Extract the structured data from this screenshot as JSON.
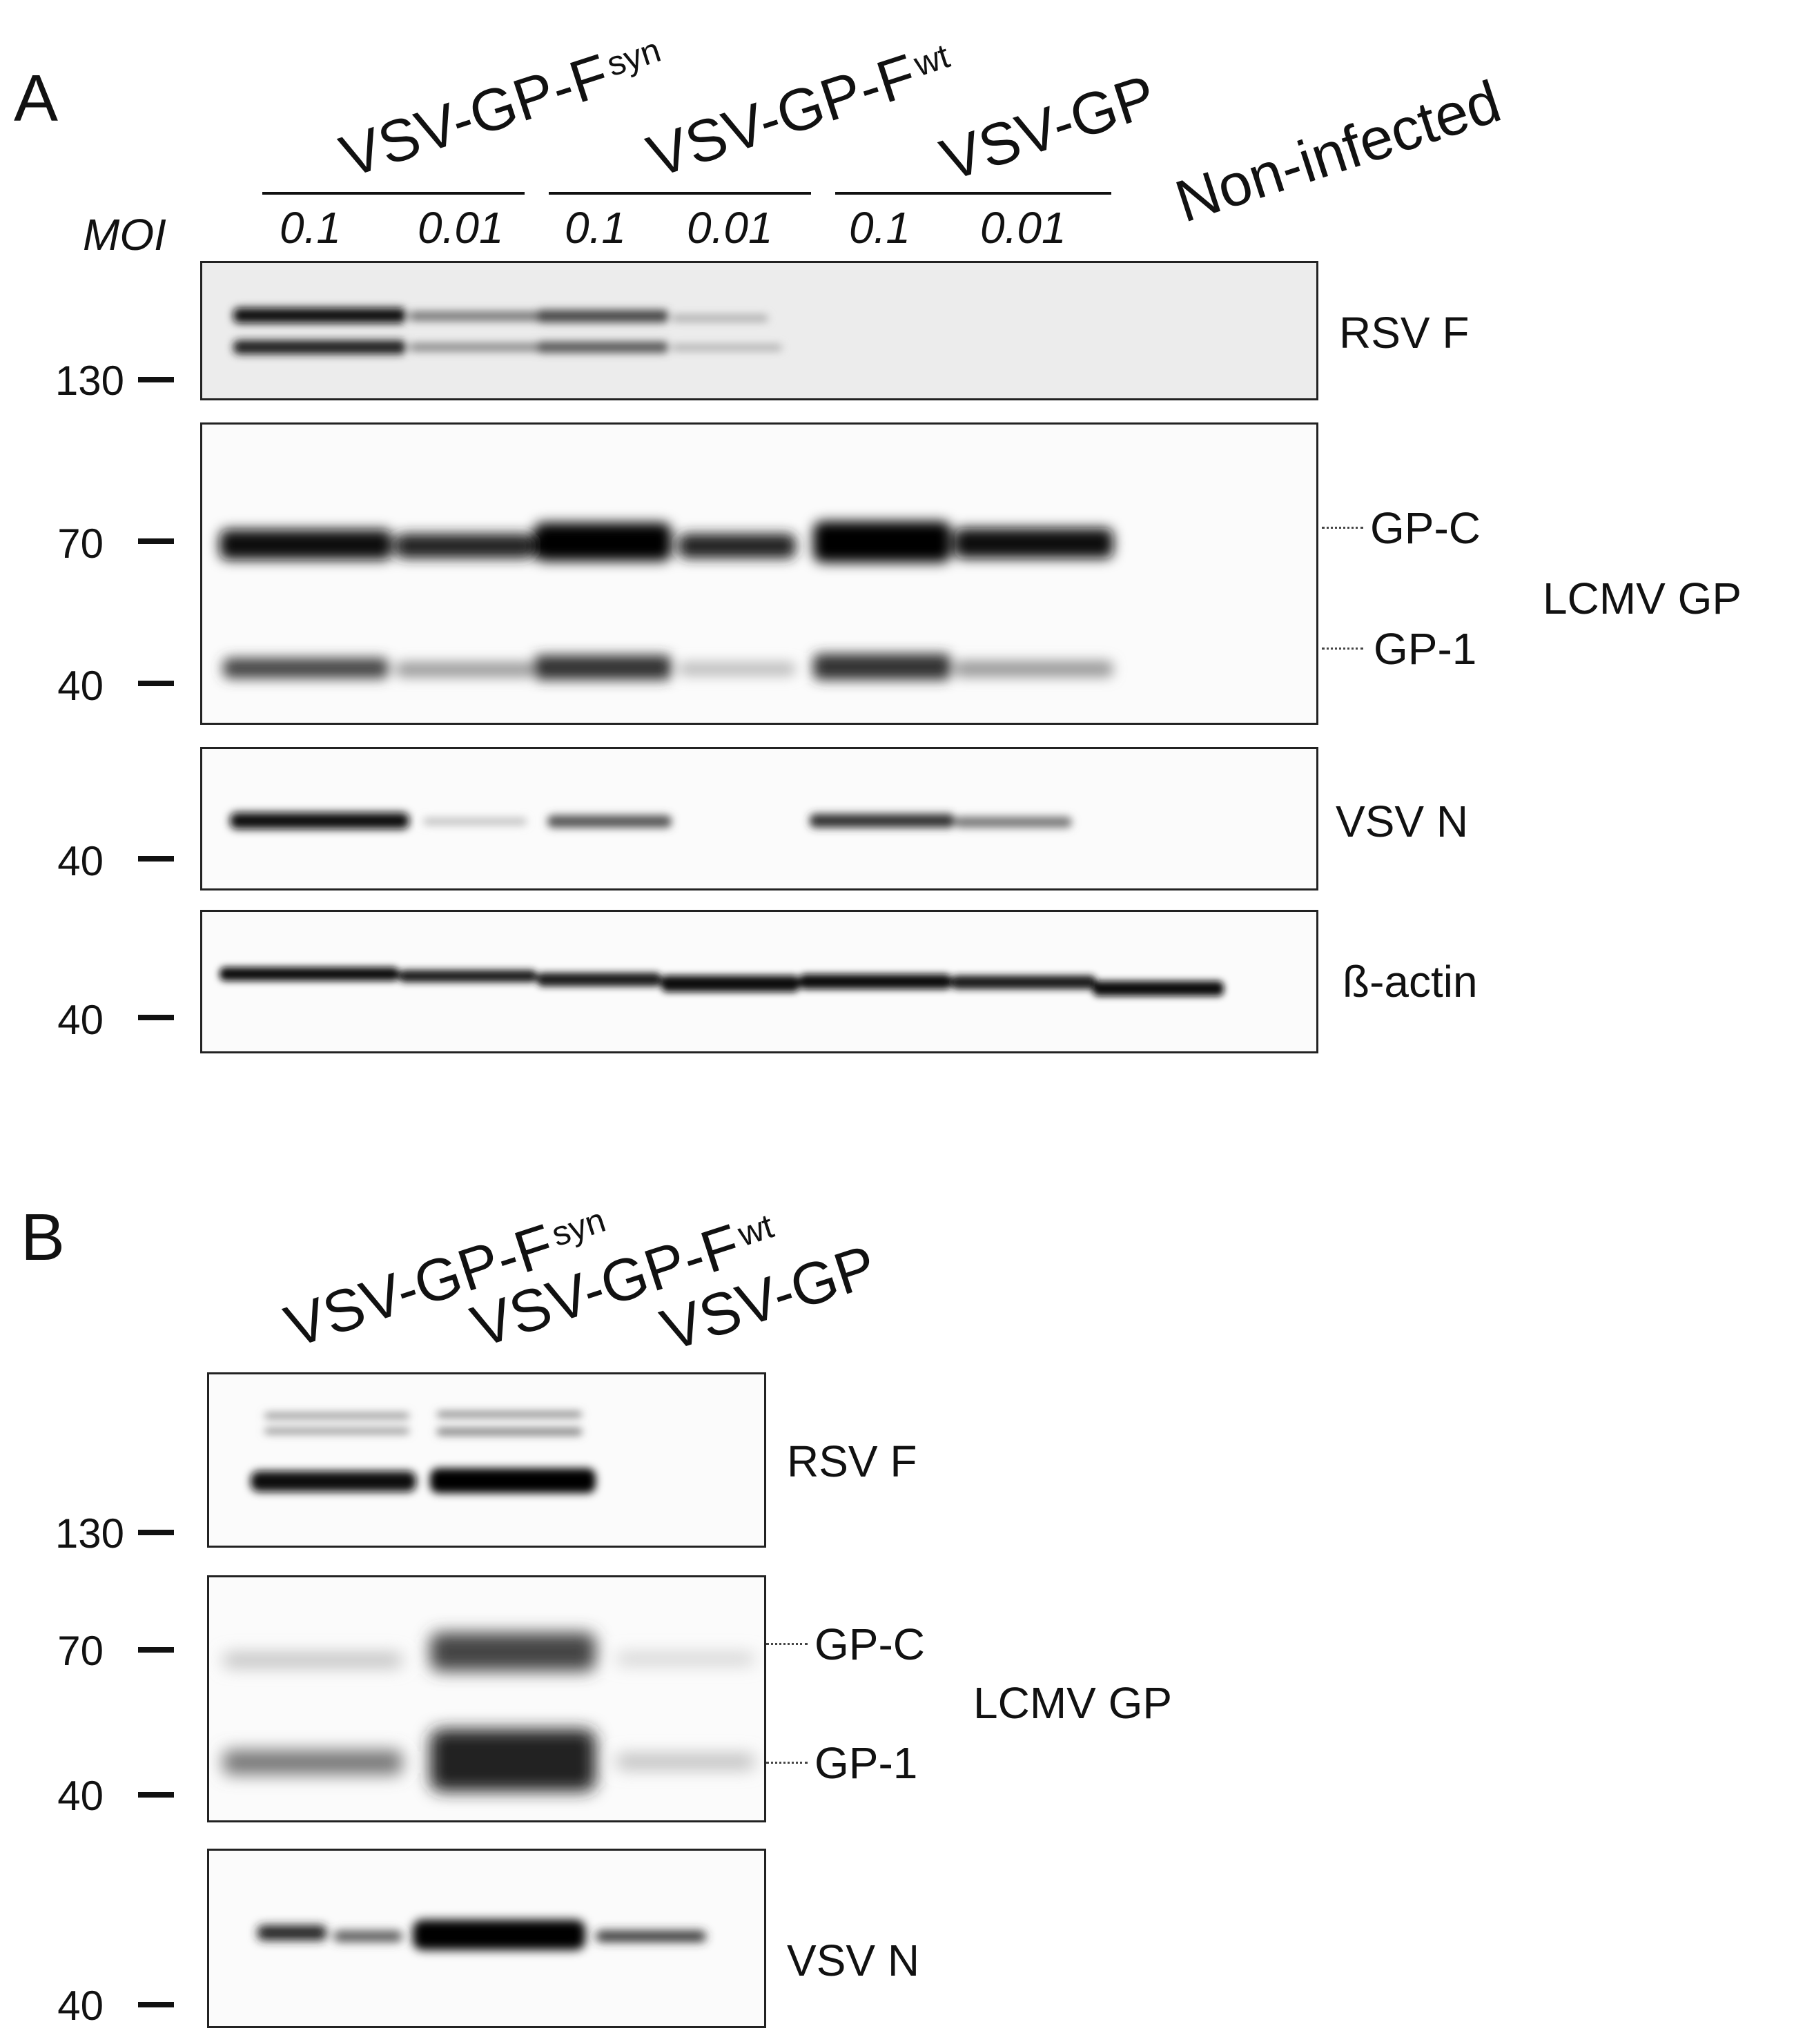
{
  "panel_a": {
    "letter": "A",
    "moi_label": "MOI",
    "groups": [
      {
        "name": "VSV-GP-F",
        "subscript": "syn"
      },
      {
        "name": "VSV-GP-F",
        "subscript": "wt"
      },
      {
        "name": "VSV-GP",
        "subscript": ""
      }
    ],
    "non_infected": "Non-infected",
    "moi_values": [
      "0.1",
      "0.01",
      "0.1",
      "0.01",
      "0.1",
      "0.01"
    ],
    "blots": {
      "rsv_f": {
        "label": "RSV F",
        "marker": "130"
      },
      "lcmv": {
        "label": "LCMV GP",
        "band_c": "GP-C",
        "band_1": "GP-1",
        "marker_top": "70",
        "marker_bottom": "40"
      },
      "vsv_n": {
        "label": "VSV N",
        "marker": "40"
      },
      "actin": {
        "label": "ß-actin",
        "marker": "40"
      }
    }
  },
  "panel_b": {
    "letter": "B",
    "groups": [
      {
        "name": "VSV-GP-F",
        "subscript": "syn"
      },
      {
        "name": "VSV-GP-F",
        "subscript": "wt"
      },
      {
        "name": "VSV-GP",
        "subscript": ""
      }
    ],
    "blots": {
      "rsv_f": {
        "label": "RSV F",
        "marker": "130"
      },
      "lcmv": {
        "label": "LCMV GP",
        "band_c": "GP-C",
        "band_1": "GP-1",
        "marker_top": "70",
        "marker_bottom": "40"
      },
      "vsv_n": {
        "label": "VSV N",
        "marker": "40"
      }
    }
  },
  "colors": {
    "band": "#111111",
    "membrane": "#fbfbfb"
  }
}
